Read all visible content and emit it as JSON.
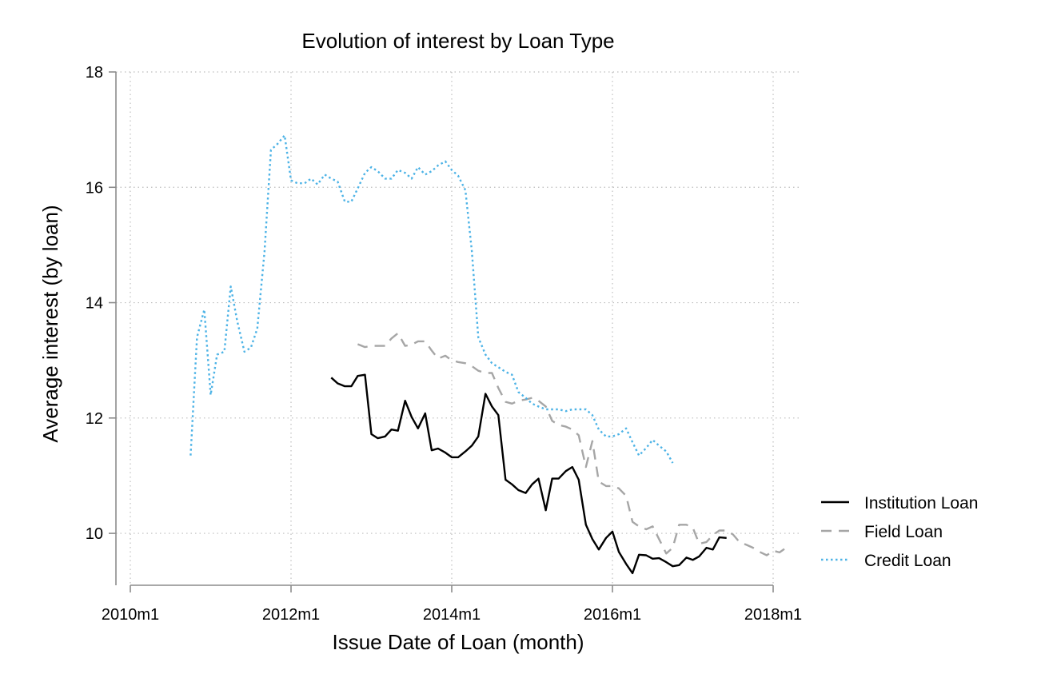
{
  "chart_data": {
    "type": "line",
    "title": "Evolution of interest by Loan Type",
    "xlabel": "Issue Date of Loan (month)",
    "ylabel": "Average interest (by loan)",
    "xlim": [
      2010.0,
      2018.0
    ],
    "ylim": [
      9.1,
      18
    ],
    "x_ticks": [
      {
        "value": 2010.0,
        "label": "2010m1"
      },
      {
        "value": 2012.0,
        "label": "2012m1"
      },
      {
        "value": 2014.0,
        "label": "2014m1"
      },
      {
        "value": 2016.0,
        "label": "2016m1"
      },
      {
        "value": 2018.0,
        "label": "2018m1"
      }
    ],
    "y_ticks": [
      {
        "value": 10,
        "label": "10"
      },
      {
        "value": 12,
        "label": "12"
      },
      {
        "value": 14,
        "label": "14"
      },
      {
        "value": 16,
        "label": "16"
      },
      {
        "value": 18,
        "label": "18"
      }
    ],
    "grid": true,
    "legend_position": "right",
    "series": [
      {
        "name": "Institution Loan",
        "color": "#000000",
        "dash": "solid",
        "x": [
          2012.5,
          2012.58,
          2012.67,
          2012.75,
          2012.83,
          2012.92,
          2013.0,
          2013.08,
          2013.17,
          2013.25,
          2013.33,
          2013.42,
          2013.5,
          2013.58,
          2013.67,
          2013.75,
          2013.83,
          2013.92,
          2014.0,
          2014.08,
          2014.17,
          2014.25,
          2014.33,
          2014.42,
          2014.5,
          2014.58,
          2014.67,
          2014.75,
          2014.83,
          2014.92,
          2015.0,
          2015.08,
          2015.17,
          2015.25,
          2015.33,
          2015.42,
          2015.5,
          2015.58,
          2015.67,
          2015.75,
          2015.83,
          2015.92,
          2016.0,
          2016.08,
          2016.17,
          2016.25,
          2016.33,
          2016.42,
          2016.5,
          2016.58,
          2016.67,
          2016.75,
          2016.83,
          2016.92,
          2017.0,
          2017.08,
          2017.17,
          2017.25,
          2017.33,
          2017.42
        ],
        "y": [
          12.7,
          12.6,
          12.55,
          12.55,
          12.73,
          12.75,
          11.72,
          11.65,
          11.68,
          11.8,
          11.78,
          12.3,
          12.02,
          11.82,
          12.08,
          11.44,
          11.47,
          11.4,
          11.32,
          11.32,
          11.42,
          11.52,
          11.68,
          12.42,
          12.2,
          12.05,
          10.93,
          10.85,
          10.75,
          10.7,
          10.85,
          10.95,
          10.4,
          10.95,
          10.95,
          11.08,
          11.15,
          10.93,
          10.15,
          9.9,
          9.72,
          9.92,
          10.03,
          9.68,
          9.47,
          9.31,
          9.63,
          9.62,
          9.56,
          9.57,
          9.5,
          9.43,
          9.45,
          9.58,
          9.54,
          9.6,
          9.75,
          9.72,
          9.93,
          9.92
        ]
      },
      {
        "name": "Field Loan",
        "color": "#a6a6a6",
        "dash": "long-dash",
        "x": [
          2012.83,
          2012.92,
          2013.0,
          2013.08,
          2013.17,
          2013.25,
          2013.33,
          2013.42,
          2013.5,
          2013.58,
          2013.67,
          2013.75,
          2013.83,
          2013.92,
          2014.0,
          2014.08,
          2014.17,
          2014.25,
          2014.33,
          2014.42,
          2014.5,
          2014.58,
          2014.67,
          2014.75,
          2014.83,
          2014.92,
          2015.0,
          2015.08,
          2015.17,
          2015.25,
          2015.33,
          2015.42,
          2015.5,
          2015.58,
          2015.67,
          2015.75,
          2015.83,
          2015.92,
          2016.0,
          2016.08,
          2016.17,
          2016.25,
          2016.33,
          2016.42,
          2016.5,
          2016.58,
          2016.67,
          2016.75,
          2016.83,
          2016.92,
          2017.0,
          2017.08,
          2017.17,
          2017.25,
          2017.33,
          2017.42,
          2017.5,
          2017.58,
          2017.67,
          2017.75,
          2017.83,
          2017.92,
          2018.0,
          2018.08,
          2018.17
        ],
        "y": [
          13.28,
          13.23,
          13.25,
          13.25,
          13.25,
          13.38,
          13.47,
          13.25,
          13.27,
          13.33,
          13.33,
          13.17,
          13.03,
          13.08,
          13.0,
          12.97,
          12.95,
          12.9,
          12.82,
          12.78,
          12.78,
          12.52,
          12.28,
          12.25,
          12.3,
          12.32,
          12.35,
          12.3,
          12.2,
          11.95,
          11.88,
          11.85,
          11.8,
          11.7,
          11.15,
          11.6,
          10.9,
          10.82,
          10.82,
          10.78,
          10.65,
          10.2,
          10.12,
          10.07,
          10.12,
          9.9,
          9.65,
          9.75,
          10.15,
          10.15,
          10.1,
          9.82,
          9.85,
          9.97,
          10.05,
          10.05,
          9.98,
          9.85,
          9.8,
          9.75,
          9.68,
          9.62,
          9.7,
          9.67,
          9.76
        ]
      },
      {
        "name": "Credit Loan",
        "color": "#4db3e6",
        "dash": "dot",
        "x": [
          2010.75,
          2010.83,
          2010.92,
          2011.0,
          2011.08,
          2011.17,
          2011.25,
          2011.33,
          2011.42,
          2011.5,
          2011.58,
          2011.67,
          2011.75,
          2011.83,
          2011.92,
          2012.0,
          2012.08,
          2012.17,
          2012.25,
          2012.33,
          2012.42,
          2012.5,
          2012.58,
          2012.67,
          2012.75,
          2012.83,
          2012.92,
          2013.0,
          2013.08,
          2013.17,
          2013.25,
          2013.33,
          2013.42,
          2013.5,
          2013.58,
          2013.67,
          2013.75,
          2013.83,
          2013.92,
          2014.0,
          2014.08,
          2014.17,
          2014.25,
          2014.33,
          2014.42,
          2014.5,
          2014.58,
          2014.67,
          2014.75,
          2014.83,
          2014.92,
          2015.0,
          2015.08,
          2015.17,
          2015.25,
          2015.33,
          2015.42,
          2015.5,
          2015.58,
          2015.67,
          2015.75,
          2015.83,
          2015.92,
          2016.0,
          2016.08,
          2016.17,
          2016.25,
          2016.33,
          2016.42,
          2016.5,
          2016.58,
          2016.67,
          2016.75
        ],
        "y": [
          11.35,
          13.4,
          13.88,
          12.4,
          13.1,
          13.15,
          14.28,
          13.68,
          13.15,
          13.22,
          13.55,
          14.88,
          16.65,
          16.75,
          16.9,
          16.12,
          16.07,
          16.07,
          16.15,
          16.05,
          16.22,
          16.15,
          16.1,
          15.75,
          15.75,
          15.98,
          16.25,
          16.35,
          16.28,
          16.15,
          16.15,
          16.3,
          16.25,
          16.15,
          16.35,
          16.22,
          16.28,
          16.38,
          16.45,
          16.3,
          16.2,
          15.95,
          14.9,
          13.4,
          13.1,
          12.95,
          12.88,
          12.8,
          12.75,
          12.45,
          12.35,
          12.25,
          12.2,
          12.15,
          12.15,
          12.15,
          12.12,
          12.15,
          12.15,
          12.15,
          12.05,
          11.8,
          11.68,
          11.68,
          11.72,
          11.82,
          11.58,
          11.35,
          11.48,
          11.62,
          11.52,
          11.42,
          11.22
        ]
      }
    ]
  }
}
